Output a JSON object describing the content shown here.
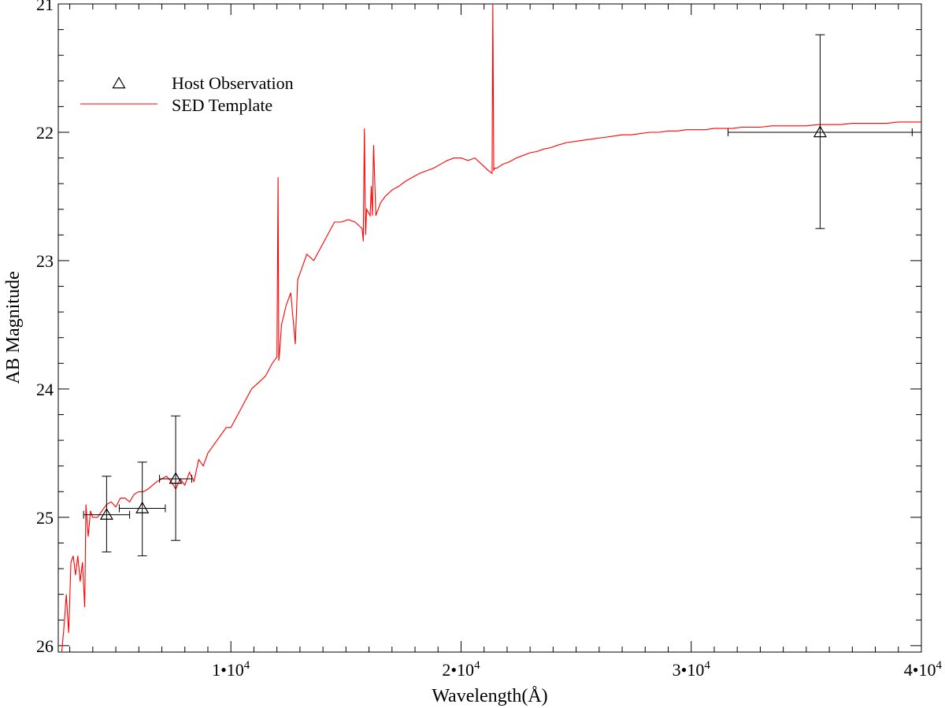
{
  "chart_data": {
    "type": "line",
    "xlabel": "Wavelength(Å)",
    "ylabel": "AB Magnitude",
    "xlim": [
      2500,
      40000
    ],
    "ylim": [
      26.05,
      21.0
    ],
    "y_inverted": true,
    "grid": false,
    "legend_position": "top-left",
    "x_major_ticks": [
      {
        "value": 10000,
        "mantissa": "1•10",
        "exp": "4"
      },
      {
        "value": 20000,
        "mantissa": "2•10",
        "exp": "4"
      },
      {
        "value": 30000,
        "mantissa": "3•10",
        "exp": "4"
      },
      {
        "value": 40000,
        "mantissa": "4•10",
        "exp": "4"
      }
    ],
    "y_major_ticks": [
      21,
      22,
      23,
      24,
      25,
      26
    ],
    "colors": {
      "template": "#ff0000",
      "observation": "#000000"
    },
    "series": [
      {
        "name": "Host Observation",
        "kind": "scatter-errorbar",
        "marker": "open-triangle",
        "points": [
          {
            "x": 4600,
            "y": 24.98,
            "xerr": 1000,
            "yerr_low": 0.29,
            "yerr_high": 0.3
          },
          {
            "x": 6150,
            "y": 24.93,
            "xerr": 1000,
            "yerr_low": 0.37,
            "yerr_high": 0.36
          },
          {
            "x": 7600,
            "y": 24.7,
            "xerr": 700,
            "yerr_low": 0.48,
            "yerr_high": 0.49
          },
          {
            "x": 35600,
            "y": 22.0,
            "xerr": 4000,
            "yerr_low": 0.75,
            "yerr_high": 0.76
          }
        ]
      },
      {
        "name": "SED Template",
        "kind": "line",
        "x": [
          2650,
          2750,
          2850,
          2950,
          3050,
          3150,
          3250,
          3350,
          3450,
          3550,
          3650,
          3700,
          3800,
          3900,
          4000,
          4200,
          4400,
          4600,
          4800,
          5000,
          5200,
          5400,
          5600,
          5800,
          6000,
          6200,
          6400,
          6600,
          6800,
          7000,
          7200,
          7400,
          7600,
          7800,
          8000,
          8200,
          8400,
          8600,
          8800,
          9000,
          9200,
          9400,
          9600,
          9800,
          10000,
          10300,
          10600,
          10900,
          11200,
          11500,
          11800,
          12000,
          12050,
          12080,
          12120,
          12200,
          12400,
          12600,
          12800,
          12900,
          13100,
          13300,
          13600,
          13900,
          14200,
          14500,
          14800,
          15100,
          15400,
          15700,
          15750,
          15800,
          15850,
          15900,
          16050,
          16100,
          16150,
          16200,
          16300,
          16350,
          16400,
          16500,
          16700,
          17000,
          17300,
          17600,
          17900,
          18200,
          18500,
          18800,
          19100,
          19400,
          19700,
          20000,
          20300,
          20600,
          20900,
          21200,
          21350,
          21380,
          21420,
          21450,
          21550,
          21800,
          22100,
          22400,
          22700,
          23000,
          23300,
          23600,
          23900,
          24200,
          24600,
          25000,
          25400,
          25800,
          26200,
          26600,
          27000,
          27400,
          27800,
          28200,
          28600,
          29000,
          29400,
          29800,
          30200,
          30600,
          31000,
          31400,
          31800,
          32200,
          32600,
          33000,
          33500,
          34000,
          34500,
          35000,
          35500,
          36000,
          36500,
          37000,
          37500,
          38000,
          38500,
          39000,
          39500,
          40000
        ],
        "y": [
          26.05,
          25.85,
          25.6,
          25.9,
          25.35,
          25.3,
          25.45,
          25.3,
          25.5,
          25.35,
          25.7,
          24.9,
          25.15,
          24.95,
          25.0,
          25.0,
          24.95,
          24.9,
          24.88,
          24.92,
          24.85,
          24.85,
          24.88,
          24.82,
          24.8,
          24.8,
          24.78,
          24.75,
          24.72,
          24.7,
          24.68,
          24.72,
          24.78,
          24.7,
          24.75,
          24.65,
          24.72,
          24.55,
          24.6,
          24.5,
          24.45,
          24.4,
          24.35,
          24.3,
          24.3,
          24.2,
          24.1,
          24.0,
          23.95,
          23.9,
          23.8,
          23.75,
          22.35,
          23.78,
          23.7,
          23.5,
          23.35,
          23.25,
          23.65,
          23.15,
          23.05,
          22.95,
          23.0,
          22.9,
          22.8,
          22.7,
          22.7,
          22.68,
          22.7,
          22.75,
          22.85,
          21.97,
          22.8,
          22.6,
          22.65,
          22.42,
          22.65,
          22.1,
          22.65,
          22.62,
          22.6,
          22.55,
          22.5,
          22.45,
          22.42,
          22.38,
          22.35,
          22.32,
          22.3,
          22.28,
          22.25,
          22.22,
          22.2,
          22.2,
          22.22,
          22.2,
          22.25,
          22.3,
          22.32,
          21.0,
          22.3,
          22.28,
          22.28,
          22.25,
          22.23,
          22.2,
          22.18,
          22.16,
          22.15,
          22.13,
          22.12,
          22.1,
          22.08,
          22.07,
          22.06,
          22.05,
          22.04,
          22.03,
          22.02,
          22.02,
          22.01,
          22.0,
          22.0,
          21.99,
          21.99,
          21.98,
          21.98,
          21.98,
          21.97,
          21.97,
          21.97,
          21.96,
          21.96,
          21.96,
          21.95,
          21.95,
          21.95,
          21.95,
          21.94,
          21.94,
          21.94,
          21.93,
          21.93,
          21.93,
          21.93,
          21.92,
          21.92,
          21.92
        ]
      }
    ]
  }
}
